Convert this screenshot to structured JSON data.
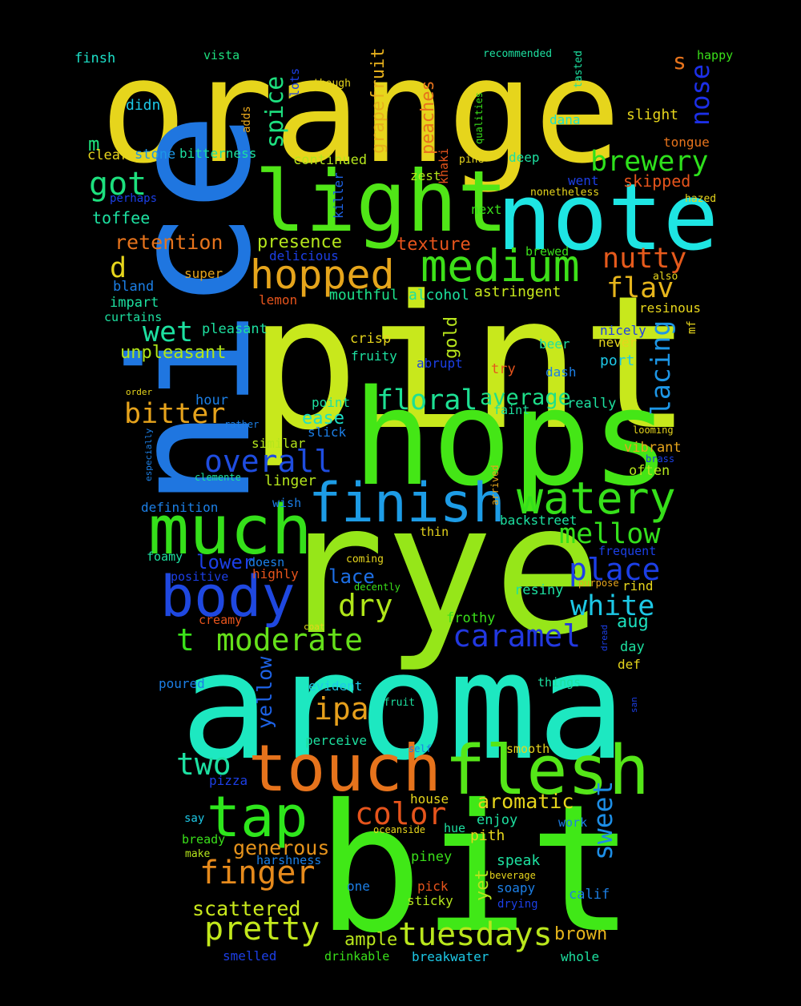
{
  "background": "#000000",
  "words": [
    {
      "text": "orange",
      "color": "#e6d51c"
    },
    {
      "text": "nice",
      "color": "#1f76e0"
    },
    {
      "text": "pint",
      "color": "#c8e81c"
    },
    {
      "text": "rye",
      "color": "#96e619"
    },
    {
      "text": "aroma",
      "color": "#1de8c1"
    },
    {
      "text": "bit",
      "color": "#40e817"
    },
    {
      "text": "hops",
      "color": "#44e616"
    },
    {
      "text": "light",
      "color": "#50e617"
    },
    {
      "text": "note",
      "color": "#1ee5e3"
    },
    {
      "text": "touch",
      "color": "#e6731c"
    },
    {
      "text": "flesh",
      "color": "#55e618"
    },
    {
      "text": "much",
      "color": "#35e01a"
    },
    {
      "text": "finish",
      "color": "#1d9ce6"
    },
    {
      "text": "body",
      "color": "#1f48e0"
    },
    {
      "text": "tap",
      "color": "#2ee61c"
    },
    {
      "text": "watery",
      "color": "#36e01a"
    },
    {
      "text": "hopped",
      "color": "#e6a51c"
    },
    {
      "text": "medium",
      "color": "#3de019"
    },
    {
      "text": "pretty",
      "color": "#c2e81c"
    },
    {
      "text": "tuesdays",
      "color": "#b9e61c"
    },
    {
      "text": "finger",
      "color": "#e68a1c"
    },
    {
      "text": "moderate",
      "color": "#65e01a"
    },
    {
      "text": "caramel",
      "color": "#2238e0"
    },
    {
      "text": "color",
      "color": "#e6541c"
    },
    {
      "text": "place",
      "color": "#1c3fe6"
    },
    {
      "text": "overall",
      "color": "#1f4de0"
    },
    {
      "text": "floral",
      "color": "#1de094"
    },
    {
      "text": "mellow",
      "color": "#34e01c"
    },
    {
      "text": "white",
      "color": "#1dc8e6"
    },
    {
      "text": "two",
      "color": "#1de0a2"
    },
    {
      "text": "ipa",
      "color": "#e6a01c"
    },
    {
      "text": "dry",
      "color": "#b0e619"
    },
    {
      "text": "bitter",
      "color": "#e6a31c"
    },
    {
      "text": "wet",
      "color": "#1de0a0"
    },
    {
      "text": "nutty",
      "color": "#e65a1c"
    },
    {
      "text": "brewery",
      "color": "#2ee01c"
    },
    {
      "text": "got",
      "color": "#1de07e"
    },
    {
      "text": "flav",
      "color": "#e6b51c"
    },
    {
      "text": "sweet",
      "color": "#1d8ee6"
    },
    {
      "text": "lacing",
      "color": "#1d96e6"
    },
    {
      "text": "spice",
      "color": "#1de07f"
    },
    {
      "text": "nose",
      "color": "#1c2fe6"
    },
    {
      "text": "average",
      "color": "#1de08a"
    },
    {
      "text": "aromatic",
      "color": "#e6d51c"
    },
    {
      "text": "generous",
      "color": "#e6931c"
    },
    {
      "text": "scattered",
      "color": "#c9e81c"
    },
    {
      "text": "brown",
      "color": "#e6b51c"
    },
    {
      "text": "ample",
      "color": "#b8e61c"
    },
    {
      "text": "yellow",
      "color": "#1d62e6"
    },
    {
      "text": "t",
      "color": "#3ae01a"
    },
    {
      "text": "d",
      "color": "#e6d51c"
    },
    {
      "text": "m",
      "color": "#1de07c"
    },
    {
      "text": "s",
      "color": "#e6731c"
    },
    {
      "text": "grapefruit",
      "color": "#e6b01c"
    },
    {
      "text": "peaches",
      "color": "#e6731c"
    },
    {
      "text": "retention",
      "color": "#e6731c"
    },
    {
      "text": "presence",
      "color": "#b5e61c"
    },
    {
      "text": "texture",
      "color": "#e6541c"
    },
    {
      "text": "toffee",
      "color": "#1de0a0"
    },
    {
      "text": "unpleasant",
      "color": "#b0e619"
    },
    {
      "text": "mouthful",
      "color": "#1de08a"
    },
    {
      "text": "alcohol",
      "color": "#1de0a0"
    },
    {
      "text": "astringent",
      "color": "#c8e81c"
    },
    {
      "text": "gold",
      "color": "#b8e61c"
    },
    {
      "text": "lower",
      "color": "#1c3fe6"
    },
    {
      "text": "lace",
      "color": "#1d6fe6"
    },
    {
      "text": "aug",
      "color": "#1de0bd"
    },
    {
      "text": "ease",
      "color": "#1de0c8"
    },
    {
      "text": "linger",
      "color": "#b5e61c"
    },
    {
      "text": "yet",
      "color": "#b5e61c"
    },
    {
      "text": "pith",
      "color": "#e6d51c"
    },
    {
      "text": "speak",
      "color": "#1de0a0"
    },
    {
      "text": "skipped",
      "color": "#e6541c"
    },
    {
      "text": "stone",
      "color": "#1d96e6"
    },
    {
      "text": "clear",
      "color": "#e6d51c"
    },
    {
      "text": "bitterness",
      "color": "#1de0a0"
    },
    {
      "text": "continued",
      "color": "#b5e61c"
    },
    {
      "text": "zest",
      "color": "#b5e61c"
    },
    {
      "text": "killer",
      "color": "#1d62e6"
    },
    {
      "text": "khaki",
      "color": "#e6541c"
    },
    {
      "text": "deep",
      "color": "#1de0a0"
    },
    {
      "text": "went",
      "color": "#1c3fe6"
    },
    {
      "text": "slight",
      "color": "#e6d51c"
    },
    {
      "text": "tongue",
      "color": "#e6731c"
    },
    {
      "text": "dana",
      "color": "#1de0c8"
    },
    {
      "text": "didn",
      "color": "#1dc8e6"
    },
    {
      "text": "finsh",
      "color": "#1de0c8"
    },
    {
      "text": "vista",
      "color": "#1de07f"
    },
    {
      "text": "recommended",
      "color": "#1de0a0"
    },
    {
      "text": "happy",
      "color": "#3ae01a"
    },
    {
      "text": "though",
      "color": "#e6d51c"
    },
    {
      "text": "lots",
      "color": "#1c3fe6"
    },
    {
      "text": "adds",
      "color": "#e6a51c"
    },
    {
      "text": "tasted",
      "color": "#1de0a0"
    },
    {
      "text": "qualities",
      "color": "#3ae01a"
    },
    {
      "text": "pine",
      "color": "#e6d51c"
    },
    {
      "text": "perhaps",
      "color": "#1c3fe6"
    },
    {
      "text": "nonetheless",
      "color": "#e6d51c"
    },
    {
      "text": "hazed",
      "color": "#e6d51c"
    },
    {
      "text": "next",
      "color": "#3ae01a"
    },
    {
      "text": "delicious",
      "color": "#1c3fe6"
    },
    {
      "text": "brewed",
      "color": "#3ae01a"
    },
    {
      "text": "super",
      "color": "#e6a51c"
    },
    {
      "text": "bland",
      "color": "#1c7fe6"
    },
    {
      "text": "also",
      "color": "#e6d51c"
    },
    {
      "text": "lemon",
      "color": "#e6541c"
    },
    {
      "text": "impart",
      "color": "#1de0a0"
    },
    {
      "text": "resinous",
      "color": "#e6d51c"
    },
    {
      "text": "curtains",
      "color": "#1de0a0"
    },
    {
      "text": "nicely",
      "color": "#1c3fe6"
    },
    {
      "text": "mf",
      "color": "#e6d51c"
    },
    {
      "text": "pleasant",
      "color": "#1de0a0"
    },
    {
      "text": "crisp",
      "color": "#e6d51c"
    },
    {
      "text": "beer",
      "color": "#1de0a0"
    },
    {
      "text": "never",
      "color": "#e6d51c"
    },
    {
      "text": "fruity",
      "color": "#1de0a0"
    },
    {
      "text": "port",
      "color": "#1dc8e6"
    },
    {
      "text": "abrupt",
      "color": "#1c3fe6"
    },
    {
      "text": "try",
      "color": "#e6541c"
    },
    {
      "text": "dash",
      "color": "#1c7fe6"
    },
    {
      "text": "order",
      "color": "#e6d51c"
    },
    {
      "text": "hour",
      "color": "#1c7fe6"
    },
    {
      "text": "point",
      "color": "#1de0a0"
    },
    {
      "text": "faint",
      "color": "#1de0a0"
    },
    {
      "text": "really",
      "color": "#1de0a0"
    },
    {
      "text": "rather",
      "color": "#1c7fe6"
    },
    {
      "text": "slick",
      "color": "#1c7fe6"
    },
    {
      "text": "looming",
      "color": "#e6d51c"
    },
    {
      "text": "especially",
      "color": "#1c7fe6"
    },
    {
      "text": "similar",
      "color": "#b5e61c"
    },
    {
      "text": "vibrant",
      "color": "#e6a51c"
    },
    {
      "text": "brass",
      "color": "#1c3fe6"
    },
    {
      "text": "clemente",
      "color": "#1de0a0"
    },
    {
      "text": "often",
      "color": "#b5e61c"
    },
    {
      "text": "arrived",
      "color": "#e6a51c"
    },
    {
      "text": "definition",
      "color": "#1c7fe6"
    },
    {
      "text": "wish",
      "color": "#1c7fe6"
    },
    {
      "text": "backstreet",
      "color": "#1de0a0"
    },
    {
      "text": "thin",
      "color": "#e6d51c"
    },
    {
      "text": "frequent",
      "color": "#1c3fe6"
    },
    {
      "text": "foamy",
      "color": "#1de0a0"
    },
    {
      "text": "doesn",
      "color": "#1c7fe6"
    },
    {
      "text": "coming",
      "color": "#e6d51c"
    },
    {
      "text": "purpose",
      "color": "#e6a51c"
    },
    {
      "text": "positive",
      "color": "#1c3fe6"
    },
    {
      "text": "highly",
      "color": "#e6541c"
    },
    {
      "text": "decently",
      "color": "#3ae01a"
    },
    {
      "text": "resiny",
      "color": "#1de0a0"
    },
    {
      "text": "rind",
      "color": "#e6d51c"
    },
    {
      "text": "creamy",
      "color": "#e6541c"
    },
    {
      "text": "frothy",
      "color": "#3ae01a"
    },
    {
      "text": "coat",
      "color": "#e6d51c"
    },
    {
      "text": "dread",
      "color": "#1c3fe6"
    },
    {
      "text": "day",
      "color": "#1de0a0"
    },
    {
      "text": "def",
      "color": "#e6d51c"
    },
    {
      "text": "poured",
      "color": "#1c7fe6"
    },
    {
      "text": "evident",
      "color": "#1dc8e6"
    },
    {
      "text": "things",
      "color": "#1de0a0"
    },
    {
      "text": "fruit",
      "color": "#1de0a0"
    },
    {
      "text": "san",
      "color": "#1c3fe6"
    },
    {
      "text": "perceive",
      "color": "#1de0a0"
    },
    {
      "text": "self",
      "color": "#1c7fe6"
    },
    {
      "text": "smooth",
      "color": "#e6d51c"
    },
    {
      "text": "pizza",
      "color": "#1c3fe6"
    },
    {
      "text": "house",
      "color": "#e6d51c"
    },
    {
      "text": "say",
      "color": "#1dc8e6"
    },
    {
      "text": "enjoy",
      "color": "#1de0a0"
    },
    {
      "text": "work",
      "color": "#1c7fe6"
    },
    {
      "text": "bready",
      "color": "#3ae01a"
    },
    {
      "text": "oceanside",
      "color": "#e6d51c"
    },
    {
      "text": "hue",
      "color": "#1de0a0"
    },
    {
      "text": "make",
      "color": "#b5e61c"
    },
    {
      "text": "harshness",
      "color": "#1c7fe6"
    },
    {
      "text": "piney",
      "color": "#3ae01a"
    },
    {
      "text": "one",
      "color": "#1c7fe6"
    },
    {
      "text": "pick",
      "color": "#e6541c"
    },
    {
      "text": "beverage",
      "color": "#e6d51c"
    },
    {
      "text": "soapy",
      "color": "#1c7fe6"
    },
    {
      "text": "calif",
      "color": "#1c7fe6"
    },
    {
      "text": "sticky",
      "color": "#b5e61c"
    },
    {
      "text": "drying",
      "color": "#1c3fe6"
    },
    {
      "text": "smelled",
      "color": "#1c3fe6"
    },
    {
      "text": "drinkable",
      "color": "#3ae01a"
    },
    {
      "text": "breakwater",
      "color": "#1dc8e6"
    },
    {
      "text": "whole",
      "color": "#1de0a0"
    }
  ]
}
